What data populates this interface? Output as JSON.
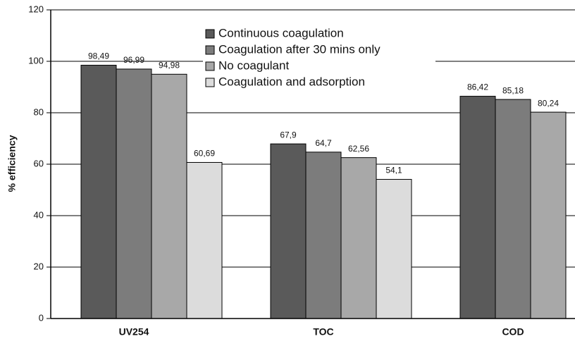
{
  "chart_data": {
    "type": "bar",
    "y_label": "% efficiency",
    "categories": [
      "UV254",
      "TOC",
      "COD"
    ],
    "series": [
      {
        "name": "Continuous coagulation",
        "color": "#5a5a5a",
        "values": [
          98.49,
          67.9,
          86.42
        ],
        "value_labels": [
          "98,49",
          "67,9",
          "86,42"
        ]
      },
      {
        "name": "Coagulation after 30 mins only",
        "color": "#7c7c7c",
        "values": [
          96.99,
          64.7,
          85.18
        ],
        "value_labels": [
          "96,99",
          "64,7",
          "85,18"
        ]
      },
      {
        "name": "No coagulant",
        "color": "#a8a8a8",
        "values": [
          94.98,
          62.56,
          80.24
        ],
        "value_labels": [
          "94,98",
          "62,56",
          "80,24"
        ]
      },
      {
        "name": "Coagulation and adsorption",
        "color": "#dcdcdc",
        "values": [
          60.69,
          54.1,
          null
        ],
        "value_labels": [
          "60,69",
          "54,1",
          null
        ]
      }
    ],
    "ylim": [
      0,
      120
    ],
    "yticks": [
      0,
      20,
      40,
      60,
      80,
      100,
      120
    ],
    "grid": true,
    "legend": "top"
  }
}
